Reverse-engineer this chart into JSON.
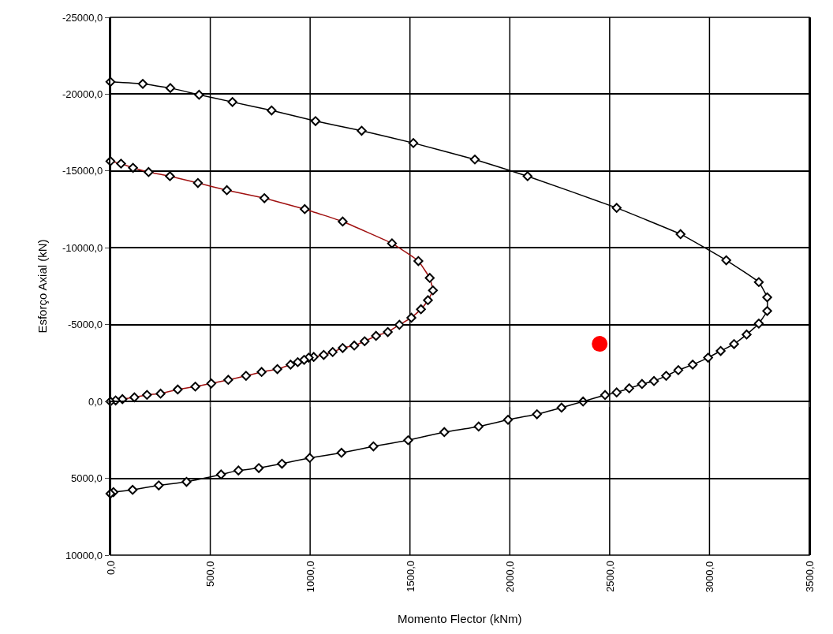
{
  "chart_data": {
    "type": "line",
    "xlabel": "Momento Flector (kNm)",
    "ylabel": "Esforço Axial (kN)",
    "xlim": [
      0,
      3500
    ],
    "ylim": [
      10000,
      -25000
    ],
    "xticks": [
      {
        "value": 0,
        "label": "0,0"
      },
      {
        "value": 500,
        "label": "500,0"
      },
      {
        "value": 1000,
        "label": "1000,0"
      },
      {
        "value": 1500,
        "label": "1500,0"
      },
      {
        "value": 2000,
        "label": "2000,0"
      },
      {
        "value": 2500,
        "label": "2500,0"
      },
      {
        "value": 3000,
        "label": "3000,0"
      },
      {
        "value": 3500,
        "label": "3500,0"
      }
    ],
    "yticks": [
      {
        "value": -25000,
        "label": "-25000,0"
      },
      {
        "value": -20000,
        "label": "-20000,0"
      },
      {
        "value": -15000,
        "label": "-15000,0"
      },
      {
        "value": -10000,
        "label": "-10000,0"
      },
      {
        "value": -5000,
        "label": "-5000,0"
      },
      {
        "value": 0,
        "label": "0,0"
      },
      {
        "value": 5000,
        "label": "5000,0"
      },
      {
        "value": 10000,
        "label": "10000,0"
      }
    ],
    "grid": true,
    "marker": "diamond",
    "line_style": "solid",
    "series": [
      {
        "color": "#000000",
        "x": [
          0,
          162,
          300,
          444,
          611,
          807,
          1027,
          1258,
          1517,
          1825,
          2089,
          2535,
          2855,
          3084,
          3247,
          3289,
          3289,
          3247,
          3186,
          3123,
          3056,
          2993,
          2916,
          2844,
          2783,
          2722,
          2662,
          2598,
          2535,
          2477,
          2367,
          2259,
          2136,
          1991,
          1844,
          1672,
          1491,
          1317,
          1157,
          998,
          859,
          743,
          641,
          554,
          381,
          242,
          111,
          15,
          0
        ],
        "values": [
          -20800,
          -20670,
          -20400,
          -19960,
          -19490,
          -18940,
          -18250,
          -17620,
          -16820,
          -15750,
          -14660,
          -12600,
          -10890,
          -9190,
          -7770,
          -6780,
          -5890,
          -5070,
          -4360,
          -3740,
          -3290,
          -2850,
          -2400,
          -2040,
          -1670,
          -1330,
          -1140,
          -860,
          -590,
          -420,
          0,
          400,
          830,
          1190,
          1630,
          1990,
          2520,
          2920,
          3340,
          3670,
          4050,
          4330,
          4490,
          4750,
          5230,
          5460,
          5750,
          5900,
          6000
        ]
      },
      {
        "color": "#a01010",
        "x": [
          0,
          53,
          113,
          191,
          298,
          438,
          583,
          771,
          973,
          1163,
          1410,
          1542,
          1599,
          1615,
          1590,
          1555,
          1507,
          1447,
          1389,
          1330,
          1273,
          1221,
          1163,
          1113,
          1068,
          1018,
          993,
          970,
          938,
          902,
          836,
          757,
          679,
          590,
          505,
          425,
          337,
          251,
          183,
          120,
          60,
          26,
          0
        ],
        "values": [
          -15640,
          -15480,
          -15210,
          -14930,
          -14660,
          -14220,
          -13750,
          -13230,
          -12520,
          -11710,
          -10290,
          -9140,
          -8040,
          -7230,
          -6590,
          -6000,
          -5450,
          -4990,
          -4520,
          -4270,
          -3920,
          -3640,
          -3480,
          -3220,
          -3030,
          -2900,
          -2850,
          -2710,
          -2560,
          -2400,
          -2110,
          -1920,
          -1670,
          -1410,
          -1170,
          -970,
          -780,
          -510,
          -430,
          -270,
          -150,
          -70,
          0
        ]
      },
      {
        "type": "scatter",
        "marker": "circle",
        "color": "#ff0000",
        "x": [
          2450
        ],
        "values": [
          -3750
        ]
      }
    ]
  }
}
